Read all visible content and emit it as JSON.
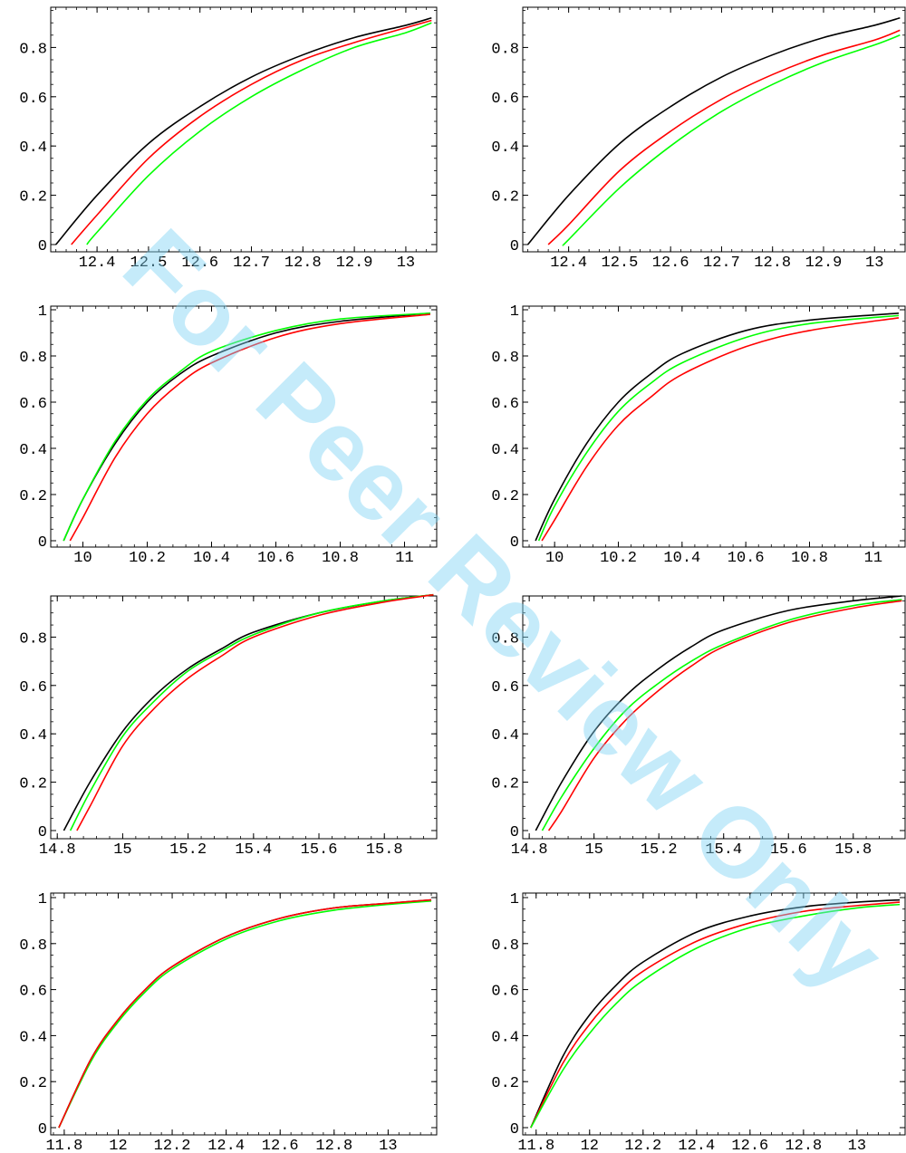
{
  "watermark": "For Peer Review Only",
  "colors": {
    "frame": "#000000",
    "black_series": "#000000",
    "red_series": "#ff0000",
    "green_series": "#00ff00",
    "watermark": "#7fd4f5"
  },
  "chart_data": [
    {
      "type": "line",
      "ylim": [
        0,
        1
      ],
      "xlim": [
        12.31,
        13.06
      ],
      "grid": false,
      "xticks": [
        {
          "v": 12.4,
          "label": "12.4"
        },
        {
          "v": 12.5,
          "label": "12.5"
        },
        {
          "v": 12.6,
          "label": "12.6"
        },
        {
          "v": 12.7,
          "label": "12.7"
        },
        {
          "v": 12.8,
          "label": "12.8"
        },
        {
          "v": 12.9,
          "label": "12.9"
        },
        {
          "v": 13.0,
          "label": "13"
        }
      ],
      "yticks": [
        {
          "v": 0,
          "label": "0"
        },
        {
          "v": 0.2,
          "label": "0.2"
        },
        {
          "v": 0.4,
          "label": "0.4"
        },
        {
          "v": 0.6,
          "label": "0.6"
        },
        {
          "v": 0.8,
          "label": "0.8"
        }
      ],
      "series": [
        {
          "color": "black",
          "x": [
            12.32,
            12.4,
            12.5,
            12.6,
            12.7,
            12.8,
            12.9,
            13.0,
            13.05
          ],
          "y": [
            0,
            0.2,
            0.41,
            0.56,
            0.68,
            0.77,
            0.84,
            0.89,
            0.92
          ]
        },
        {
          "color": "red",
          "x": [
            12.35,
            12.4,
            12.5,
            12.6,
            12.7,
            12.8,
            12.9,
            13.0,
            13.05
          ],
          "y": [
            0,
            0.12,
            0.35,
            0.52,
            0.65,
            0.75,
            0.82,
            0.88,
            0.91
          ]
        },
        {
          "color": "green",
          "x": [
            12.38,
            12.4,
            12.5,
            12.6,
            12.7,
            12.8,
            12.9,
            13.0,
            13.05
          ],
          "y": [
            0,
            0.05,
            0.28,
            0.46,
            0.6,
            0.71,
            0.8,
            0.86,
            0.9
          ]
        }
      ]
    },
    {
      "type": "line",
      "ylim": [
        0,
        1
      ],
      "xlim": [
        12.31,
        13.06
      ],
      "grid": false,
      "xticks": [
        {
          "v": 12.4,
          "label": "12.4"
        },
        {
          "v": 12.5,
          "label": "12.5"
        },
        {
          "v": 12.6,
          "label": "12.6"
        },
        {
          "v": 12.7,
          "label": "12.7"
        },
        {
          "v": 12.8,
          "label": "12.8"
        },
        {
          "v": 12.9,
          "label": "12.9"
        },
        {
          "v": 13.0,
          "label": "13"
        }
      ],
      "yticks": [
        {
          "v": 0,
          "label": "0"
        },
        {
          "v": 0.2,
          "label": "0.2"
        },
        {
          "v": 0.4,
          "label": "0.4"
        },
        {
          "v": 0.6,
          "label": "0.6"
        },
        {
          "v": 0.8,
          "label": "0.8"
        }
      ],
      "series": [
        {
          "color": "black",
          "x": [
            12.32,
            12.4,
            12.5,
            12.6,
            12.7,
            12.8,
            12.9,
            13.0,
            13.05
          ],
          "y": [
            0,
            0.2,
            0.41,
            0.56,
            0.68,
            0.77,
            0.84,
            0.89,
            0.92
          ]
        },
        {
          "color": "red",
          "x": [
            12.36,
            12.4,
            12.5,
            12.6,
            12.7,
            12.8,
            12.9,
            13.0,
            13.05
          ],
          "y": [
            0,
            0.08,
            0.3,
            0.46,
            0.59,
            0.69,
            0.77,
            0.83,
            0.87
          ]
        },
        {
          "color": "green",
          "x": [
            12.39,
            12.4,
            12.5,
            12.6,
            12.7,
            12.8,
            12.9,
            13.0,
            13.05
          ],
          "y": [
            0,
            0.02,
            0.23,
            0.4,
            0.54,
            0.65,
            0.74,
            0.81,
            0.85
          ]
        }
      ]
    },
    {
      "type": "line",
      "ylim": [
        0,
        1
      ],
      "xlim": [
        9.9,
        11.1
      ],
      "grid": false,
      "xticks": [
        {
          "v": 10.0,
          "label": "10"
        },
        {
          "v": 10.2,
          "label": "10.2"
        },
        {
          "v": 10.4,
          "label": "10.4"
        },
        {
          "v": 10.6,
          "label": "10.6"
        },
        {
          "v": 10.8,
          "label": "10.8"
        },
        {
          "v": 11.0,
          "label": "11"
        }
      ],
      "yticks": [
        {
          "v": 0,
          "label": "0"
        },
        {
          "v": 0.2,
          "label": "0.2"
        },
        {
          "v": 0.4,
          "label": "0.4"
        },
        {
          "v": 0.6,
          "label": "0.6"
        },
        {
          "v": 0.8,
          "label": "0.8"
        },
        {
          "v": 1,
          "label": "1"
        }
      ],
      "series": [
        {
          "color": "black",
          "x": [
            9.94,
            10.0,
            10.1,
            10.2,
            10.3,
            10.4,
            10.6,
            10.8,
            11.08
          ],
          "y": [
            0,
            0.18,
            0.42,
            0.6,
            0.72,
            0.8,
            0.9,
            0.95,
            0.985
          ]
        },
        {
          "color": "green",
          "x": [
            9.94,
            10.0,
            10.1,
            10.2,
            10.3,
            10.4,
            10.6,
            10.8,
            11.08
          ],
          "y": [
            0,
            0.18,
            0.43,
            0.61,
            0.73,
            0.82,
            0.91,
            0.96,
            0.985
          ]
        },
        {
          "color": "red",
          "x": [
            9.96,
            10.0,
            10.1,
            10.2,
            10.3,
            10.4,
            10.6,
            10.8,
            11.08
          ],
          "y": [
            0,
            0.1,
            0.36,
            0.55,
            0.68,
            0.77,
            0.88,
            0.94,
            0.98
          ]
        }
      ]
    },
    {
      "type": "line",
      "ylim": [
        0,
        1
      ],
      "xlim": [
        9.9,
        11.1
      ],
      "grid": false,
      "xticks": [
        {
          "v": 10.0,
          "label": "10"
        },
        {
          "v": 10.2,
          "label": "10.2"
        },
        {
          "v": 10.4,
          "label": "10.4"
        },
        {
          "v": 10.6,
          "label": "10.6"
        },
        {
          "v": 10.8,
          "label": "10.8"
        },
        {
          "v": 11.0,
          "label": "11"
        }
      ],
      "yticks": [
        {
          "v": 0,
          "label": "0"
        },
        {
          "v": 0.2,
          "label": "0.2"
        },
        {
          "v": 0.4,
          "label": "0.4"
        },
        {
          "v": 0.6,
          "label": "0.6"
        },
        {
          "v": 0.8,
          "label": "0.8"
        },
        {
          "v": 1,
          "label": "1"
        }
      ],
      "series": [
        {
          "color": "black",
          "x": [
            9.94,
            10.0,
            10.1,
            10.2,
            10.3,
            10.4,
            10.6,
            10.8,
            11.08
          ],
          "y": [
            0,
            0.18,
            0.42,
            0.6,
            0.72,
            0.81,
            0.91,
            0.955,
            0.985
          ]
        },
        {
          "color": "green",
          "x": [
            9.95,
            10.0,
            10.1,
            10.2,
            10.3,
            10.4,
            10.6,
            10.8,
            11.08
          ],
          "y": [
            0,
            0.15,
            0.38,
            0.56,
            0.68,
            0.77,
            0.88,
            0.94,
            0.975
          ]
        },
        {
          "color": "red",
          "x": [
            9.96,
            10.0,
            10.1,
            10.2,
            10.3,
            10.4,
            10.6,
            10.8,
            11.08
          ],
          "y": [
            0,
            0.09,
            0.32,
            0.5,
            0.62,
            0.72,
            0.84,
            0.91,
            0.965
          ]
        }
      ]
    },
    {
      "type": "line",
      "ylim": [
        0,
        1
      ],
      "xlim": [
        14.78,
        15.96
      ],
      "grid": false,
      "xticks": [
        {
          "v": 14.8,
          "label": "14.8"
        },
        {
          "v": 15.0,
          "label": "15"
        },
        {
          "v": 15.2,
          "label": "15.2"
        },
        {
          "v": 15.4,
          "label": "15.4"
        },
        {
          "v": 15.6,
          "label": "15.6"
        },
        {
          "v": 15.8,
          "label": "15.8"
        }
      ],
      "yticks": [
        {
          "v": 0,
          "label": "0"
        },
        {
          "v": 0.2,
          "label": "0.2"
        },
        {
          "v": 0.4,
          "label": "0.4"
        },
        {
          "v": 0.6,
          "label": "0.6"
        },
        {
          "v": 0.8,
          "label": "0.8"
        }
      ],
      "series": [
        {
          "color": "black",
          "x": [
            14.82,
            14.9,
            15.0,
            15.1,
            15.2,
            15.3,
            15.4,
            15.6,
            15.8,
            15.95
          ],
          "y": [
            0,
            0.2,
            0.41,
            0.56,
            0.67,
            0.75,
            0.82,
            0.9,
            0.95,
            0.975
          ]
        },
        {
          "color": "green",
          "x": [
            14.84,
            14.9,
            15.0,
            15.1,
            15.2,
            15.3,
            15.4,
            15.6,
            15.8,
            15.95
          ],
          "y": [
            0,
            0.16,
            0.39,
            0.54,
            0.66,
            0.74,
            0.81,
            0.9,
            0.95,
            0.975
          ]
        },
        {
          "color": "red",
          "x": [
            14.86,
            14.9,
            15.0,
            15.1,
            15.2,
            15.3,
            15.4,
            15.6,
            15.8,
            15.95
          ],
          "y": [
            0,
            0.1,
            0.35,
            0.51,
            0.63,
            0.72,
            0.8,
            0.89,
            0.945,
            0.975
          ]
        }
      ]
    },
    {
      "type": "line",
      "ylim": [
        0,
        1
      ],
      "xlim": [
        14.78,
        15.96
      ],
      "grid": false,
      "xticks": [
        {
          "v": 14.8,
          "label": "14.8"
        },
        {
          "v": 15.0,
          "label": "15"
        },
        {
          "v": 15.2,
          "label": "15.2"
        },
        {
          "v": 15.4,
          "label": "15.4"
        },
        {
          "v": 15.6,
          "label": "15.6"
        },
        {
          "v": 15.8,
          "label": "15.8"
        }
      ],
      "yticks": [
        {
          "v": 0,
          "label": "0"
        },
        {
          "v": 0.2,
          "label": "0.2"
        },
        {
          "v": 0.4,
          "label": "0.4"
        },
        {
          "v": 0.6,
          "label": "0.6"
        },
        {
          "v": 0.8,
          "label": "0.8"
        }
      ],
      "series": [
        {
          "color": "black",
          "x": [
            14.82,
            14.9,
            15.0,
            15.1,
            15.2,
            15.3,
            15.4,
            15.6,
            15.8,
            15.95
          ],
          "y": [
            0,
            0.2,
            0.41,
            0.56,
            0.67,
            0.76,
            0.83,
            0.91,
            0.95,
            0.97
          ]
        },
        {
          "color": "green",
          "x": [
            14.84,
            14.9,
            15.0,
            15.1,
            15.2,
            15.3,
            15.4,
            15.6,
            15.8,
            15.95
          ],
          "y": [
            0,
            0.14,
            0.34,
            0.5,
            0.61,
            0.7,
            0.77,
            0.87,
            0.93,
            0.955
          ]
        },
        {
          "color": "red",
          "x": [
            14.86,
            14.9,
            15.0,
            15.1,
            15.2,
            15.3,
            15.4,
            15.6,
            15.8,
            15.95
          ],
          "y": [
            0,
            0.08,
            0.3,
            0.46,
            0.58,
            0.68,
            0.76,
            0.86,
            0.92,
            0.95
          ]
        }
      ]
    },
    {
      "type": "line",
      "ylim": [
        0,
        1
      ],
      "xlim": [
        11.75,
        13.18
      ],
      "grid": false,
      "xticks": [
        {
          "v": 11.8,
          "label": "11.8"
        },
        {
          "v": 12.0,
          "label": "12"
        },
        {
          "v": 12.2,
          "label": "12.2"
        },
        {
          "v": 12.4,
          "label": "12.4"
        },
        {
          "v": 12.6,
          "label": "12.6"
        },
        {
          "v": 12.8,
          "label": "12.8"
        },
        {
          "v": 13.0,
          "label": "13"
        }
      ],
      "yticks": [
        {
          "v": 0,
          "label": "0"
        },
        {
          "v": 0.2,
          "label": "0.2"
        },
        {
          "v": 0.4,
          "label": "0.4"
        },
        {
          "v": 0.6,
          "label": "0.6"
        },
        {
          "v": 0.8,
          "label": "0.8"
        },
        {
          "v": 1,
          "label": "1"
        }
      ],
      "series": [
        {
          "color": "black",
          "x": [
            11.78,
            11.9,
            12.0,
            12.1,
            12.2,
            12.4,
            12.6,
            12.8,
            13.0,
            13.16
          ],
          "y": [
            0,
            0.3,
            0.47,
            0.6,
            0.7,
            0.83,
            0.91,
            0.955,
            0.975,
            0.99
          ]
        },
        {
          "color": "green",
          "x": [
            11.78,
            11.9,
            12.0,
            12.1,
            12.2,
            12.4,
            12.6,
            12.8,
            13.0,
            13.16
          ],
          "y": [
            0,
            0.29,
            0.46,
            0.59,
            0.69,
            0.82,
            0.9,
            0.945,
            0.97,
            0.985
          ]
        },
        {
          "color": "red",
          "x": [
            11.78,
            11.9,
            12.0,
            12.1,
            12.2,
            12.4,
            12.6,
            12.8,
            13.0,
            13.16
          ],
          "y": [
            0,
            0.3,
            0.47,
            0.6,
            0.7,
            0.83,
            0.91,
            0.955,
            0.975,
            0.99
          ]
        }
      ]
    },
    {
      "type": "line",
      "ylim": [
        0,
        1
      ],
      "xlim": [
        11.75,
        13.18
      ],
      "grid": false,
      "xticks": [
        {
          "v": 11.8,
          "label": "11.8"
        },
        {
          "v": 12.0,
          "label": "12"
        },
        {
          "v": 12.2,
          "label": "12.2"
        },
        {
          "v": 12.4,
          "label": "12.4"
        },
        {
          "v": 12.6,
          "label": "12.6"
        },
        {
          "v": 12.8,
          "label": "12.8"
        },
        {
          "v": 13.0,
          "label": "13"
        }
      ],
      "yticks": [
        {
          "v": 0,
          "label": "0"
        },
        {
          "v": 0.2,
          "label": "0.2"
        },
        {
          "v": 0.4,
          "label": "0.4"
        },
        {
          "v": 0.6,
          "label": "0.6"
        },
        {
          "v": 0.8,
          "label": "0.8"
        },
        {
          "v": 1,
          "label": "1"
        }
      ],
      "series": [
        {
          "color": "black",
          "x": [
            11.78,
            11.9,
            12.0,
            12.1,
            12.2,
            12.4,
            12.6,
            12.8,
            13.0,
            13.16
          ],
          "y": [
            0,
            0.31,
            0.49,
            0.62,
            0.72,
            0.85,
            0.92,
            0.96,
            0.98,
            0.99
          ]
        },
        {
          "color": "red",
          "x": [
            11.78,
            11.9,
            12.0,
            12.1,
            12.2,
            12.4,
            12.6,
            12.8,
            13.0,
            13.16
          ],
          "y": [
            0,
            0.28,
            0.45,
            0.58,
            0.68,
            0.81,
            0.89,
            0.94,
            0.965,
            0.98
          ]
        },
        {
          "color": "green",
          "x": [
            11.78,
            11.9,
            12.0,
            12.1,
            12.2,
            12.4,
            12.6,
            12.8,
            13.0,
            13.16
          ],
          "y": [
            0,
            0.25,
            0.41,
            0.54,
            0.64,
            0.78,
            0.87,
            0.92,
            0.955,
            0.97
          ]
        }
      ]
    }
  ]
}
